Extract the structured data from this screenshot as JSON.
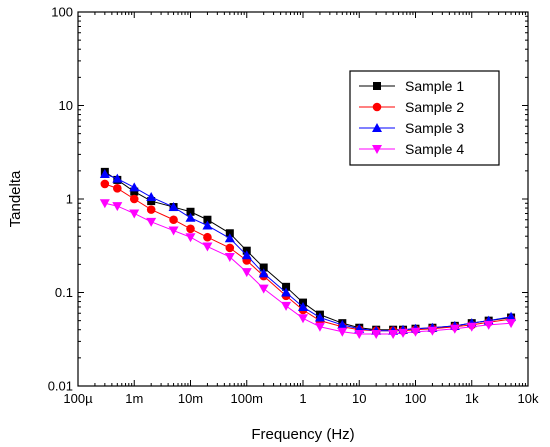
{
  "chart_data": {
    "type": "line",
    "title": "",
    "xlabel": "Frequency (Hz)",
    "ylabel": "Tandelta",
    "xscale": "log",
    "yscale": "log",
    "xlim": [
      0.0001,
      10000
    ],
    "ylim": [
      0.01,
      100
    ],
    "xticks": [
      {
        "value": 0.0001,
        "label": "100µ"
      },
      {
        "value": 0.001,
        "label": "1m"
      },
      {
        "value": 0.01,
        "label": "10m"
      },
      {
        "value": 0.1,
        "label": "100m"
      },
      {
        "value": 1,
        "label": "1"
      },
      {
        "value": 10,
        "label": "10"
      },
      {
        "value": 100,
        "label": "100"
      },
      {
        "value": 1000,
        "label": "1k"
      },
      {
        "value": 10000,
        "label": "10k"
      }
    ],
    "yticks": [
      {
        "value": 0.01,
        "label": "0.01"
      },
      {
        "value": 0.1,
        "label": "0.1"
      },
      {
        "value": 1,
        "label": "1"
      },
      {
        "value": 10,
        "label": "10"
      },
      {
        "value": 100,
        "label": "100"
      }
    ],
    "grid": false,
    "legend_position": "top-right",
    "x": [
      0.0003,
      0.0005,
      0.001,
      0.002,
      0.005,
      0.01,
      0.02,
      0.05,
      0.1,
      0.2,
      0.5,
      1,
      2,
      5,
      10,
      20,
      40,
      60,
      100,
      200,
      500,
      1000,
      2000,
      5000
    ],
    "series": [
      {
        "name": "Sample 1",
        "color": "#000000",
        "marker": "square",
        "values": [
          1.95,
          1.6,
          1.2,
          0.95,
          0.82,
          0.73,
          0.6,
          0.43,
          0.28,
          0.185,
          0.115,
          0.078,
          0.058,
          0.047,
          0.042,
          0.04,
          0.04,
          0.04,
          0.041,
          0.042,
          0.044,
          0.047,
          0.05,
          0.054
        ]
      },
      {
        "name": "Sample 2",
        "color": "#ff0000",
        "marker": "circle",
        "values": [
          1.45,
          1.3,
          1.0,
          0.77,
          0.6,
          0.48,
          0.39,
          0.3,
          0.22,
          0.15,
          0.092,
          0.065,
          0.05,
          0.043,
          0.04,
          0.039,
          0.039,
          0.039,
          0.04,
          0.041,
          0.043,
          0.045,
          0.048,
          0.052
        ]
      },
      {
        "name": "Sample 3",
        "color": "#0000ff",
        "marker": "triangle-up",
        "values": [
          1.85,
          1.65,
          1.33,
          1.05,
          0.82,
          0.63,
          0.52,
          0.38,
          0.25,
          0.16,
          0.1,
          0.07,
          0.054,
          0.045,
          0.041,
          0.039,
          0.039,
          0.04,
          0.041,
          0.042,
          0.044,
          0.047,
          0.05,
          0.055
        ]
      },
      {
        "name": "Sample 4",
        "color": "#ff00ff",
        "marker": "triangle-down",
        "values": [
          0.9,
          0.84,
          0.7,
          0.57,
          0.46,
          0.39,
          0.31,
          0.24,
          0.165,
          0.11,
          0.072,
          0.053,
          0.043,
          0.038,
          0.036,
          0.036,
          0.036,
          0.037,
          0.038,
          0.039,
          0.041,
          0.043,
          0.045,
          0.047
        ]
      }
    ]
  }
}
